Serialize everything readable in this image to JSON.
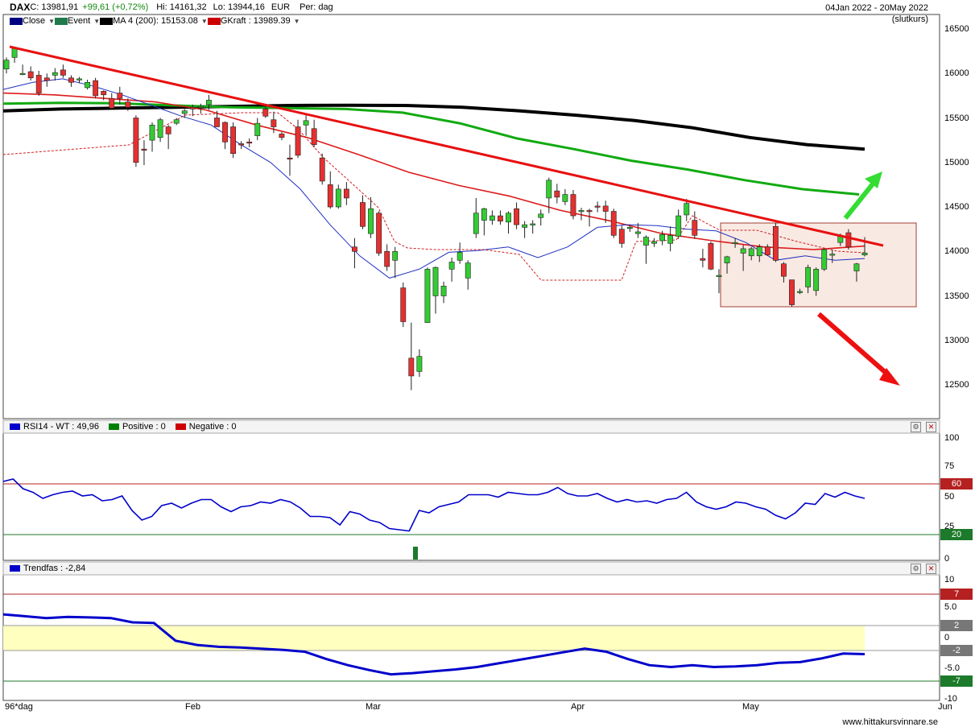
{
  "header": {
    "symbol": "DAX",
    "close_label": "C: 13981,91",
    "change_label": "+99,61 (+0,72%)",
    "hi_label": "Hi: 14161,32",
    "lo_label": "Lo: 13944,16",
    "currency": "EUR",
    "period": "Per: dag",
    "date_range": "04Jan 2022 - 20May 2022",
    "note": "(slutkurs)"
  },
  "legend": [
    {
      "label": "Close",
      "color": "#000080"
    },
    {
      "label": "Event",
      "color": "#1f7a4c"
    },
    {
      "label": "MA 4 (200): 15153.08",
      "color": "#000000"
    },
    {
      "label": "GKraft : 13989.39",
      "color": "#cc0000"
    }
  ],
  "rsi_panel": {
    "legend": [
      {
        "label": "RSI14 - WT : 49,96",
        "color": "#0000cc"
      },
      {
        "label": "Positive : 0",
        "color": "#008000"
      },
      {
        "label": "Negative : 0",
        "color": "#cc0000"
      }
    ],
    "ticks": [
      "100",
      "75",
      "50",
      "25",
      "0"
    ],
    "upper_tag": "60",
    "lower_tag": "20"
  },
  "trend_panel": {
    "legend": [
      {
        "label": "Trendfas : -2,84",
        "color": "#0000cc"
      }
    ],
    "ticks": [
      "10",
      "5.0",
      "0",
      "-5.0",
      "-10"
    ],
    "tags": [
      "7",
      "2",
      "-2",
      "-7"
    ]
  },
  "price_axis": {
    "ticks": [
      "16500",
      "16000",
      "15500",
      "15000",
      "14500",
      "14000",
      "13500",
      "13000",
      "12500"
    ]
  },
  "x_axis": {
    "labels": [
      "96*dag",
      "Feb",
      "Mar",
      "Apr",
      "May",
      "Jun"
    ]
  },
  "watermark": "www.hittakursvinnare.se",
  "colors": {
    "up": "#33cc33",
    "down": "#e53030",
    "ma_black": "#000000",
    "ma_green": "#11aa11",
    "ma_red": "#e02020",
    "rsi": "#0000cc"
  },
  "chart_data": {
    "type": "candlestick",
    "title": "DAX",
    "ylim": [
      12000,
      16600
    ],
    "candles": [
      {
        "o": 16050,
        "h": 16180,
        "l": 16000,
        "c": 16150
      },
      {
        "o": 16180,
        "h": 16300,
        "l": 16120,
        "c": 16280
      },
      {
        "o": 16000,
        "h": 16100,
        "l": 15980,
        "c": 16000
      },
      {
        "o": 16020,
        "h": 16080,
        "l": 15920,
        "c": 15950
      },
      {
        "o": 15980,
        "h": 16030,
        "l": 15750,
        "c": 15780
      },
      {
        "o": 15950,
        "h": 16000,
        "l": 15850,
        "c": 15920
      },
      {
        "o": 15980,
        "h": 16060,
        "l": 15920,
        "c": 16010
      },
      {
        "o": 16040,
        "h": 16100,
        "l": 15950,
        "c": 15980
      },
      {
        "o": 15950,
        "h": 15980,
        "l": 15850,
        "c": 15900
      },
      {
        "o": 15930,
        "h": 15960,
        "l": 15890,
        "c": 15940
      },
      {
        "o": 15840,
        "h": 15930,
        "l": 15820,
        "c": 15900
      },
      {
        "o": 15920,
        "h": 15950,
        "l": 15720,
        "c": 15750
      },
      {
        "o": 15800,
        "h": 15810,
        "l": 15700,
        "c": 15760
      },
      {
        "o": 15720,
        "h": 15780,
        "l": 15590,
        "c": 15610
      },
      {
        "o": 15780,
        "h": 15850,
        "l": 15650,
        "c": 15720
      },
      {
        "o": 15680,
        "h": 15720,
        "l": 15580,
        "c": 15620
      },
      {
        "o": 15500,
        "h": 15530,
        "l": 14950,
        "c": 15000
      },
      {
        "o": 15150,
        "h": 15250,
        "l": 14970,
        "c": 15140
      },
      {
        "o": 15250,
        "h": 15450,
        "l": 15120,
        "c": 15420
      },
      {
        "o": 15280,
        "h": 15500,
        "l": 15230,
        "c": 15480
      },
      {
        "o": 15400,
        "h": 15420,
        "l": 15150,
        "c": 15320
      },
      {
        "o": 15440,
        "h": 15500,
        "l": 15420,
        "c": 15480
      },
      {
        "o": 15550,
        "h": 15600,
        "l": 15500,
        "c": 15580
      },
      {
        "o": 15620,
        "h": 15650,
        "l": 15520,
        "c": 15600
      },
      {
        "o": 15620,
        "h": 15660,
        "l": 15550,
        "c": 15630
      },
      {
        "o": 15650,
        "h": 15760,
        "l": 15590,
        "c": 15700
      },
      {
        "o": 15500,
        "h": 15580,
        "l": 15400,
        "c": 15400
      },
      {
        "o": 15450,
        "h": 15460,
        "l": 15150,
        "c": 15230
      },
      {
        "o": 15400,
        "h": 15450,
        "l": 15050,
        "c": 15100
      },
      {
        "o": 15210,
        "h": 15240,
        "l": 15150,
        "c": 15200
      },
      {
        "o": 15230,
        "h": 15270,
        "l": 15170,
        "c": 15220
      },
      {
        "o": 15300,
        "h": 15500,
        "l": 15250,
        "c": 15440
      },
      {
        "o": 15600,
        "h": 15650,
        "l": 15500,
        "c": 15520
      },
      {
        "o": 15480,
        "h": 15570,
        "l": 15330,
        "c": 15400
      },
      {
        "o": 15320,
        "h": 15340,
        "l": 15250,
        "c": 15280
      },
      {
        "o": 15050,
        "h": 15200,
        "l": 14850,
        "c": 15040
      },
      {
        "o": 15400,
        "h": 15480,
        "l": 15050,
        "c": 15080
      },
      {
        "o": 15420,
        "h": 15550,
        "l": 15300,
        "c": 15470
      },
      {
        "o": 15380,
        "h": 15480,
        "l": 15170,
        "c": 15200
      },
      {
        "o": 15050,
        "h": 15100,
        "l": 14750,
        "c": 14790
      },
      {
        "o": 14750,
        "h": 14900,
        "l": 14480,
        "c": 14500
      },
      {
        "o": 14500,
        "h": 14750,
        "l": 14480,
        "c": 14700
      },
      {
        "o": 14700,
        "h": 14780,
        "l": 14520,
        "c": 14600
      },
      {
        "o": 14050,
        "h": 14150,
        "l": 13810,
        "c": 14000
      },
      {
        "o": 14550,
        "h": 14630,
        "l": 14250,
        "c": 14280
      },
      {
        "o": 14200,
        "h": 14610,
        "l": 14150,
        "c": 14480
      },
      {
        "o": 14430,
        "h": 14450,
        "l": 13950,
        "c": 13980
      },
      {
        "o": 14000,
        "h": 14080,
        "l": 13780,
        "c": 13830
      },
      {
        "o": 13900,
        "h": 14050,
        "l": 13700,
        "c": 14000
      },
      {
        "o": 13590,
        "h": 13650,
        "l": 13150,
        "c": 13210
      },
      {
        "o": 12800,
        "h": 13200,
        "l": 12440,
        "c": 12600
      },
      {
        "o": 12650,
        "h": 12900,
        "l": 12590,
        "c": 12820
      },
      {
        "o": 13200,
        "h": 13820,
        "l": 13200,
        "c": 13800
      },
      {
        "o": 13500,
        "h": 13830,
        "l": 13300,
        "c": 13820
      },
      {
        "o": 13500,
        "h": 13660,
        "l": 13420,
        "c": 13610
      },
      {
        "o": 13800,
        "h": 13930,
        "l": 13660,
        "c": 13880
      },
      {
        "o": 13900,
        "h": 14100,
        "l": 13860,
        "c": 13990
      },
      {
        "o": 13700,
        "h": 13900,
        "l": 13570,
        "c": 13870
      },
      {
        "o": 14200,
        "h": 14600,
        "l": 14150,
        "c": 14430
      },
      {
        "o": 14350,
        "h": 14490,
        "l": 14180,
        "c": 14480
      },
      {
        "o": 14350,
        "h": 14460,
        "l": 14300,
        "c": 14400
      },
      {
        "o": 14400,
        "h": 14460,
        "l": 14300,
        "c": 14340
      },
      {
        "o": 14330,
        "h": 14450,
        "l": 14200,
        "c": 14430
      },
      {
        "o": 14480,
        "h": 14550,
        "l": 14250,
        "c": 14300
      },
      {
        "o": 14270,
        "h": 14340,
        "l": 14150,
        "c": 14300
      },
      {
        "o": 14310,
        "h": 14350,
        "l": 14200,
        "c": 14310
      },
      {
        "o": 14380,
        "h": 14470,
        "l": 14290,
        "c": 14420
      },
      {
        "o": 14600,
        "h": 14830,
        "l": 14430,
        "c": 14800
      },
      {
        "o": 14680,
        "h": 14760,
        "l": 14540,
        "c": 14610
      },
      {
        "o": 14560,
        "h": 14700,
        "l": 14520,
        "c": 14640
      },
      {
        "o": 14640,
        "h": 14690,
        "l": 14360,
        "c": 14400
      },
      {
        "o": 14450,
        "h": 14490,
        "l": 14350,
        "c": 14460
      },
      {
        "o": 14460,
        "h": 14480,
        "l": 14280,
        "c": 14450
      },
      {
        "o": 14510,
        "h": 14560,
        "l": 14440,
        "c": 14500
      },
      {
        "o": 14510,
        "h": 14570,
        "l": 14320,
        "c": 14450
      },
      {
        "o": 14450,
        "h": 14480,
        "l": 14150,
        "c": 14180
      },
      {
        "o": 14250,
        "h": 14290,
        "l": 14040,
        "c": 14090
      },
      {
        "o": 14260,
        "h": 14300,
        "l": 14220,
        "c": 14270
      },
      {
        "o": 14200,
        "h": 14320,
        "l": 14150,
        "c": 14220
      },
      {
        "o": 14070,
        "h": 14180,
        "l": 13860,
        "c": 14160
      },
      {
        "o": 14090,
        "h": 14150,
        "l": 14050,
        "c": 14110
      },
      {
        "o": 14120,
        "h": 14230,
        "l": 14070,
        "c": 14190
      },
      {
        "o": 14090,
        "h": 14280,
        "l": 14000,
        "c": 14180
      },
      {
        "o": 14170,
        "h": 14470,
        "l": 14140,
        "c": 14400
      },
      {
        "o": 14410,
        "h": 14590,
        "l": 14340,
        "c": 14540
      },
      {
        "o": 14350,
        "h": 14450,
        "l": 14140,
        "c": 14180
      },
      {
        "o": 13920,
        "h": 14030,
        "l": 13820,
        "c": 13900
      },
      {
        "o": 14090,
        "h": 14110,
        "l": 13790,
        "c": 13800
      },
      {
        "o": 13720,
        "h": 13800,
        "l": 13530,
        "c": 13730
      },
      {
        "o": 13870,
        "h": 13950,
        "l": 13750,
        "c": 13940
      },
      {
        "o": 14100,
        "h": 14150,
        "l": 14040,
        "c": 14100
      },
      {
        "o": 13980,
        "h": 14070,
        "l": 13780,
        "c": 14030
      },
      {
        "o": 13950,
        "h": 14050,
        "l": 13900,
        "c": 14030
      },
      {
        "o": 13950,
        "h": 14080,
        "l": 13880,
        "c": 14050
      },
      {
        "o": 14050,
        "h": 14080,
        "l": 13950,
        "c": 13960
      },
      {
        "o": 14280,
        "h": 14320,
        "l": 13880,
        "c": 13900
      },
      {
        "o": 13860,
        "h": 13880,
        "l": 13650,
        "c": 13720
      },
      {
        "o": 13680,
        "h": 13680,
        "l": 13380,
        "c": 13400
      },
      {
        "o": 13550,
        "h": 13580,
        "l": 13520,
        "c": 13550
      },
      {
        "o": 13600,
        "h": 13850,
        "l": 13530,
        "c": 13820
      },
      {
        "o": 13560,
        "h": 13820,
        "l": 13500,
        "c": 13800
      },
      {
        "o": 13800,
        "h": 14030,
        "l": 13780,
        "c": 14020
      },
      {
        "o": 13960,
        "h": 14020,
        "l": 13870,
        "c": 13970
      },
      {
        "o": 14100,
        "h": 14200,
        "l": 14060,
        "c": 14170
      },
      {
        "o": 14210,
        "h": 14250,
        "l": 14020,
        "c": 14050
      },
      {
        "o": 13780,
        "h": 13870,
        "l": 13660,
        "c": 13860
      },
      {
        "o": 13960,
        "h": 14161,
        "l": 13944,
        "c": 13982
      }
    ],
    "ma200": [
      15580,
      15600,
      15610,
      15620,
      15630,
      15640,
      15643,
      15640,
      15620,
      15580,
      15530,
      15470,
      15390,
      15280,
      15200,
      15150
    ],
    "rsi": [
      64,
      66,
      58,
      55,
      50,
      53,
      55,
      56,
      52,
      53,
      48,
      49,
      52,
      40,
      32,
      35,
      44,
      46,
      42,
      46,
      49,
      49,
      43,
      39,
      43,
      44,
      47,
      46,
      49,
      47,
      42,
      35,
      35,
      34,
      28,
      39,
      37,
      32,
      30,
      25,
      24,
      23,
      40,
      38,
      43,
      45,
      47,
      53,
      53,
      53,
      51,
      55,
      54,
      53,
      53,
      55,
      59,
      54,
      52,
      52,
      54,
      50,
      47,
      49,
      47,
      48,
      46,
      49,
      50,
      55,
      47,
      43,
      41,
      43,
      47,
      46,
      43,
      41,
      36,
      33,
      38,
      46,
      45,
      54,
      51,
      55,
      52,
      50
    ],
    "trendfas": [
      3.8,
      3.5,
      3.2,
      3.4,
      3.3,
      3.2,
      2.5,
      2.4,
      -0.5,
      -1.2,
      -1.5,
      -1.6,
      -1.8,
      -2.0,
      -2.3,
      -3.5,
      -4.5,
      -5.3,
      -6.0,
      -5.8,
      -5.5,
      -5.2,
      -4.8,
      -4.2,
      -3.6,
      -3.0,
      -2.4,
      -1.8,
      -2.3,
      -3.5,
      -4.5,
      -4.8,
      -4.5,
      -4.8,
      -4.7,
      -4.5,
      -4.1,
      -4.0,
      -3.4,
      -2.6,
      -2.7
    ]
  }
}
